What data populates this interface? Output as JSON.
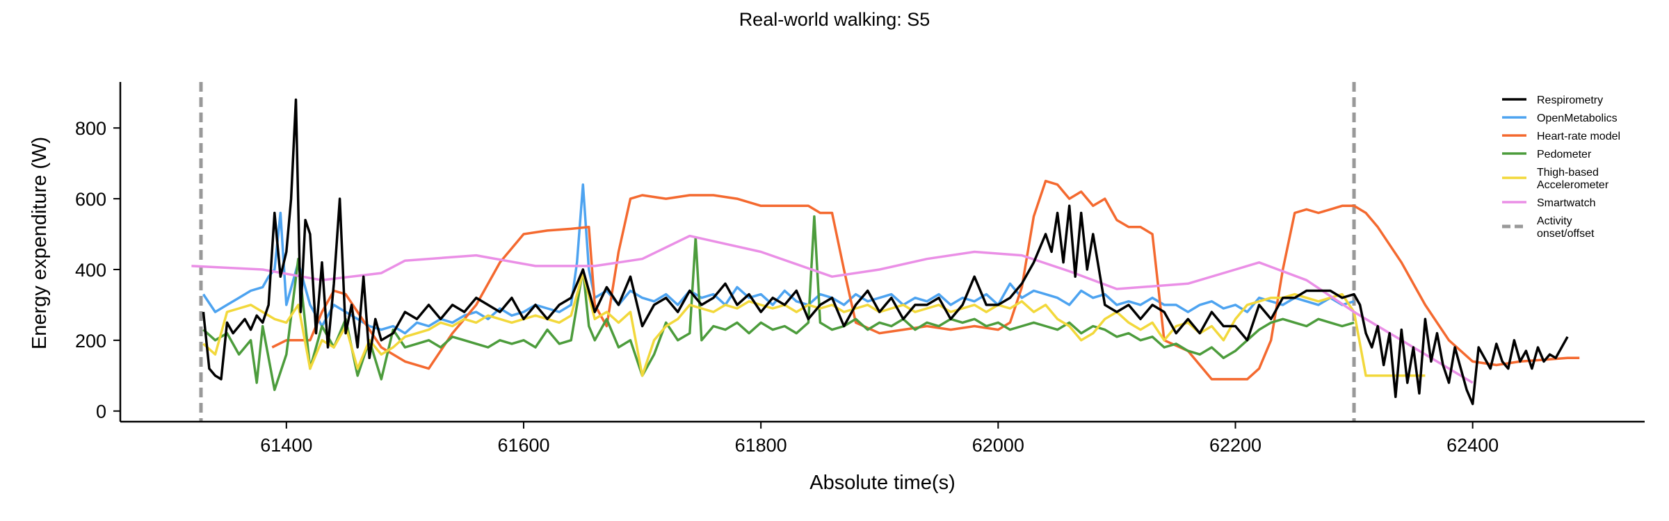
{
  "chart_data": {
    "type": "line",
    "title": "Real-world walking: S5",
    "xlabel": "Absolute time(s)",
    "ylabel": "Energy expenditure (W)",
    "xlim": [
      61260,
      62545
    ],
    "ylim": [
      -30,
      930
    ],
    "xticks": [
      61400,
      61600,
      61800,
      62000,
      62200,
      62400
    ],
    "yticks": [
      0,
      200,
      400,
      600,
      800
    ],
    "legend_position": "top-right",
    "grid": false,
    "activity_lines": [
      61328,
      62300
    ],
    "series": [
      {
        "name": "Respirometry",
        "color": "#000000",
        "stroke_width": 3.5,
        "x": [
          61330,
          61335,
          61340,
          61345,
          61350,
          61355,
          61360,
          61365,
          61370,
          61375,
          61380,
          61385,
          61390,
          61395,
          61400,
          61404,
          61408,
          61412,
          61416,
          61420,
          61425,
          61430,
          61435,
          61440,
          61445,
          61450,
          61455,
          61460,
          61465,
          61470,
          61475,
          61480,
          61490,
          61500,
          61510,
          61520,
          61530,
          61540,
          61550,
          61560,
          61570,
          61580,
          61590,
          61600,
          61610,
          61620,
          61630,
          61640,
          61650,
          61660,
          61670,
          61680,
          61690,
          61700,
          61710,
          61720,
          61730,
          61740,
          61750,
          61760,
          61770,
          61780,
          61790,
          61800,
          61810,
          61820,
          61830,
          61840,
          61850,
          61860,
          61870,
          61880,
          61890,
          61900,
          61910,
          61920,
          61930,
          61940,
          61950,
          61960,
          61970,
          61980,
          61990,
          62000,
          62010,
          62020,
          62030,
          62040,
          62045,
          62050,
          62055,
          62060,
          62065,
          62070,
          62075,
          62080,
          62090,
          62100,
          62110,
          62120,
          62130,
          62140,
          62150,
          62160,
          62170,
          62180,
          62190,
          62200,
          62210,
          62220,
          62230,
          62240,
          62250,
          62260,
          62270,
          62280,
          62290,
          62300,
          62305,
          62310,
          62315,
          62320,
          62325,
          62330,
          62335,
          62340,
          62345,
          62350,
          62355,
          62360,
          62365,
          62370,
          62375,
          62380,
          62385,
          62390,
          62395,
          62400,
          62405,
          62410,
          62415,
          62420,
          62425,
          62430,
          62435,
          62440,
          62445,
          62450,
          62455,
          62460,
          62465,
          62470,
          62480
        ],
        "y": [
          280,
          120,
          100,
          90,
          250,
          220,
          240,
          260,
          230,
          270,
          250,
          300,
          560,
          380,
          450,
          600,
          880,
          280,
          540,
          500,
          220,
          420,
          180,
          360,
          600,
          220,
          300,
          180,
          380,
          150,
          260,
          200,
          220,
          280,
          260,
          300,
          260,
          300,
          280,
          320,
          300,
          280,
          320,
          260,
          300,
          260,
          300,
          320,
          400,
          280,
          350,
          300,
          380,
          240,
          300,
          320,
          280,
          340,
          300,
          320,
          360,
          300,
          330,
          280,
          320,
          300,
          340,
          260,
          300,
          320,
          240,
          300,
          340,
          280,
          320,
          260,
          300,
          300,
          320,
          260,
          300,
          380,
          300,
          300,
          320,
          360,
          420,
          500,
          450,
          560,
          420,
          580,
          380,
          560,
          400,
          500,
          300,
          280,
          300,
          260,
          300,
          280,
          220,
          260,
          220,
          280,
          240,
          240,
          200,
          300,
          260,
          320,
          320,
          340,
          340,
          340,
          320,
          330,
          300,
          220,
          180,
          240,
          130,
          220,
          40,
          230,
          80,
          180,
          50,
          260,
          140,
          220,
          130,
          80,
          180,
          120,
          60,
          20,
          180,
          150,
          120,
          190,
          140,
          120,
          200,
          140,
          170,
          120,
          180,
          140,
          160,
          150,
          210
        ]
      },
      {
        "name": "OpenMetabolics",
        "color": "#4da3f0",
        "stroke_width": 3.5,
        "x": [
          61330,
          61340,
          61350,
          61360,
          61370,
          61380,
          61385,
          61390,
          61395,
          61400,
          61410,
          61420,
          61430,
          61440,
          61450,
          61460,
          61470,
          61480,
          61490,
          61500,
          61510,
          61520,
          61530,
          61540,
          61550,
          61560,
          61570,
          61580,
          61590,
          61600,
          61610,
          61620,
          61630,
          61640,
          61645,
          61650,
          61655,
          61660,
          61670,
          61680,
          61690,
          61700,
          61710,
          61720,
          61730,
          61740,
          61750,
          61760,
          61770,
          61780,
          61790,
          61800,
          61810,
          61820,
          61830,
          61840,
          61850,
          61860,
          61870,
          61880,
          61890,
          61900,
          61910,
          61920,
          61930,
          61940,
          61950,
          61960,
          61970,
          61980,
          61990,
          62000,
          62010,
          62020,
          62030,
          62040,
          62050,
          62060,
          62070,
          62080,
          62090,
          62100,
          62110,
          62120,
          62130,
          62140,
          62150,
          62160,
          62170,
          62180,
          62190,
          62200,
          62210,
          62220,
          62230,
          62240,
          62250,
          62260,
          62270,
          62280,
          62290,
          62300
        ],
        "y": [
          330,
          280,
          300,
          320,
          340,
          350,
          380,
          400,
          560,
          300,
          420,
          300,
          240,
          300,
          280,
          260,
          240,
          230,
          240,
          220,
          250,
          240,
          260,
          250,
          270,
          280,
          260,
          290,
          270,
          280,
          300,
          290,
          280,
          300,
          420,
          640,
          400,
          320,
          340,
          300,
          340,
          320,
          310,
          330,
          300,
          340,
          320,
          330,
          300,
          350,
          320,
          330,
          300,
          340,
          310,
          300,
          330,
          320,
          300,
          330,
          310,
          320,
          330,
          300,
          320,
          310,
          330,
          300,
          320,
          310,
          330,
          300,
          360,
          320,
          340,
          330,
          320,
          300,
          340,
          320,
          330,
          300,
          310,
          300,
          320,
          300,
          300,
          280,
          300,
          310,
          290,
          300,
          280,
          320,
          310,
          300,
          320,
          310,
          300,
          320,
          300,
          310
        ]
      },
      {
        "name": "Heart-rate model",
        "color": "#f4692f",
        "stroke_width": 3.5,
        "x": [
          61388,
          61400,
          61410,
          61420,
          61430,
          61440,
          61450,
          61460,
          61480,
          61500,
          61520,
          61540,
          61560,
          61580,
          61600,
          61620,
          61640,
          61655,
          61660,
          61670,
          61680,
          61690,
          61700,
          61720,
          61740,
          61760,
          61780,
          61800,
          61820,
          61840,
          61850,
          61860,
          61870,
          61880,
          61900,
          61920,
          61940,
          61960,
          61980,
          62000,
          62010,
          62020,
          62030,
          62040,
          62050,
          62060,
          62070,
          62080,
          62090,
          62100,
          62110,
          62120,
          62130,
          62140,
          62160,
          62180,
          62200,
          62210,
          62220,
          62230,
          62240,
          62250,
          62260,
          62270,
          62280,
          62290,
          62300,
          62310,
          62320,
          62340,
          62360,
          62380,
          62400,
          62420,
          62440,
          62460,
          62480,
          62490
        ],
        "y": [
          180,
          200,
          200,
          200,
          280,
          340,
          330,
          280,
          180,
          140,
          120,
          220,
          300,
          420,
          500,
          510,
          515,
          520,
          300,
          240,
          450,
          600,
          610,
          600,
          610,
          610,
          600,
          580,
          580,
          580,
          560,
          560,
          400,
          250,
          220,
          230,
          240,
          230,
          240,
          230,
          250,
          350,
          550,
          650,
          640,
          600,
          620,
          580,
          600,
          540,
          520,
          520,
          500,
          200,
          170,
          90,
          90,
          90,
          120,
          200,
          400,
          560,
          570,
          560,
          570,
          580,
          580,
          560,
          520,
          420,
          300,
          200,
          140,
          130,
          140,
          145,
          150,
          150
        ]
      },
      {
        "name": "Pedometer",
        "color": "#4c9c3c",
        "stroke_width": 3.5,
        "x": [
          61330,
          61340,
          61350,
          61360,
          61370,
          61375,
          61380,
          61390,
          61400,
          61410,
          61420,
          61430,
          61440,
          61450,
          61460,
          61470,
          61480,
          61490,
          61500,
          61510,
          61520,
          61530,
          61540,
          61550,
          61560,
          61570,
          61580,
          61590,
          61600,
          61610,
          61620,
          61630,
          61640,
          61650,
          61655,
          61660,
          61670,
          61680,
          61690,
          61700,
          61710,
          61720,
          61730,
          61740,
          61745,
          61750,
          61760,
          61770,
          61780,
          61790,
          61800,
          61810,
          61820,
          61830,
          61840,
          61845,
          61850,
          61860,
          61870,
          61880,
          61890,
          61900,
          61910,
          61920,
          61930,
          61940,
          61950,
          61960,
          61970,
          61980,
          61990,
          62000,
          62010,
          62020,
          62030,
          62040,
          62050,
          62060,
          62070,
          62080,
          62090,
          62100,
          62110,
          62120,
          62130,
          62140,
          62150,
          62160,
          62170,
          62180,
          62190,
          62200,
          62210,
          62220,
          62230,
          62240,
          62250,
          62260,
          62270,
          62280,
          62290,
          62300
        ],
        "y": [
          230,
          200,
          220,
          160,
          200,
          80,
          240,
          60,
          160,
          430,
          120,
          240,
          180,
          260,
          100,
          200,
          90,
          230,
          180,
          190,
          200,
          180,
          210,
          200,
          190,
          180,
          200,
          190,
          200,
          180,
          230,
          190,
          200,
          400,
          240,
          200,
          260,
          180,
          200,
          100,
          160,
          250,
          200,
          220,
          490,
          200,
          240,
          230,
          250,
          220,
          250,
          230,
          240,
          220,
          250,
          550,
          250,
          230,
          240,
          260,
          230,
          250,
          240,
          260,
          230,
          250,
          240,
          260,
          250,
          260,
          240,
          250,
          230,
          240,
          250,
          240,
          230,
          250,
          220,
          240,
          230,
          210,
          220,
          200,
          210,
          180,
          190,
          170,
          160,
          180,
          150,
          170,
          200,
          230,
          250,
          260,
          250,
          240,
          260,
          250,
          240,
          250
        ]
      },
      {
        "name": "Thigh-based Accelerometer",
        "color": "#f2d83b",
        "stroke_width": 3.5,
        "x": [
          61330,
          61340,
          61350,
          61360,
          61370,
          61380,
          61390,
          61400,
          61410,
          61420,
          61430,
          61440,
          61450,
          61460,
          61470,
          61480,
          61490,
          61500,
          61510,
          61520,
          61530,
          61540,
          61550,
          61560,
          61570,
          61580,
          61590,
          61600,
          61610,
          61620,
          61630,
          61640,
          61650,
          61660,
          61670,
          61680,
          61690,
          61700,
          61710,
          61720,
          61730,
          61740,
          61750,
          61760,
          61770,
          61780,
          61790,
          61800,
          61810,
          61820,
          61830,
          61840,
          61850,
          61860,
          61870,
          61880,
          61890,
          61900,
          61910,
          61920,
          61930,
          61940,
          61950,
          61960,
          61970,
          61980,
          61990,
          62000,
          62010,
          62020,
          62030,
          62040,
          62050,
          62060,
          62070,
          62080,
          62090,
          62100,
          62110,
          62120,
          62130,
          62140,
          62150,
          62160,
          62170,
          62180,
          62190,
          62200,
          62210,
          62220,
          62230,
          62240,
          62250,
          62260,
          62270,
          62280,
          62290,
          62300,
          62310,
          62320,
          62330,
          62340,
          62350,
          62360
        ],
        "y": [
          190,
          160,
          280,
          290,
          300,
          280,
          260,
          250,
          300,
          120,
          200,
          180,
          240,
          120,
          200,
          160,
          180,
          210,
          220,
          230,
          250,
          240,
          260,
          250,
          270,
          260,
          250,
          260,
          270,
          260,
          250,
          270,
          390,
          260,
          280,
          250,
          280,
          100,
          200,
          240,
          260,
          300,
          290,
          280,
          300,
          290,
          310,
          300,
          290,
          300,
          280,
          300,
          290,
          300,
          280,
          290,
          300,
          280,
          290,
          300,
          280,
          290,
          300,
          280,
          290,
          300,
          280,
          300,
          290,
          310,
          280,
          300,
          260,
          240,
          200,
          220,
          260,
          280,
          250,
          230,
          250,
          200,
          240,
          250,
          220,
          240,
          200,
          260,
          300,
          310,
          320,
          320,
          330,
          320,
          310,
          320,
          330,
          280,
          100,
          100,
          100,
          100,
          100,
          100
        ]
      },
      {
        "name": "Smartwatch",
        "color": "#ea8fe6",
        "stroke_width": 3.5,
        "x": [
          61320,
          61380,
          61430,
          61480,
          61500,
          61560,
          61610,
          61660,
          61700,
          61740,
          61800,
          61860,
          61900,
          61940,
          61980,
          62020,
          62060,
          62100,
          62160,
          62200,
          62220,
          62260,
          62300,
          62340,
          62370,
          62400
        ],
        "y": [
          410,
          400,
          370,
          390,
          425,
          440,
          410,
          410,
          430,
          495,
          450,
          380,
          400,
          430,
          450,
          440,
          395,
          345,
          360,
          400,
          420,
          370,
          280,
          200,
          140,
          80
        ]
      }
    ]
  }
}
